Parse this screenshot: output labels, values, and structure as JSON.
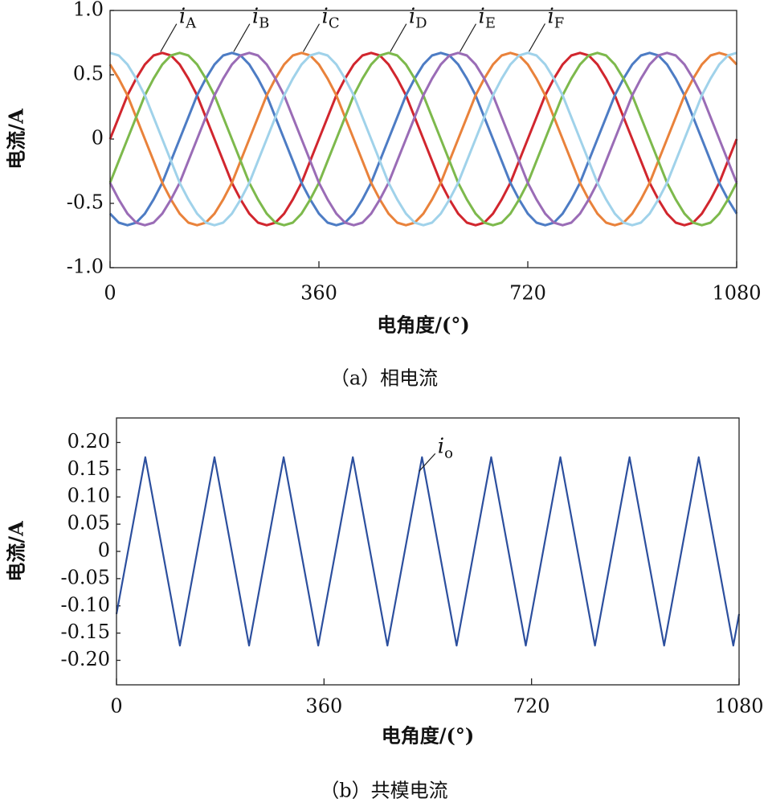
{
  "chart_data": [
    {
      "type": "line",
      "caption": "（a）相电流",
      "xlabel": "电角度/(°)",
      "ylabel": "电流/A",
      "x": [
        0,
        15,
        30,
        45,
        60,
        75,
        90,
        105,
        120,
        135,
        150,
        165,
        180,
        195,
        210,
        225,
        240,
        255,
        270,
        285,
        300,
        315,
        330,
        345,
        360,
        375,
        390,
        405,
        420,
        435,
        450,
        465,
        480,
        495,
        510,
        525,
        540,
        555,
        570,
        585,
        600,
        615,
        630,
        645,
        660,
        675,
        690,
        705,
        720,
        735,
        750,
        765,
        780,
        795,
        810,
        825,
        840,
        855,
        870,
        885,
        900,
        915,
        930,
        945,
        960,
        975,
        990,
        1005,
        1020,
        1035,
        1050,
        1065,
        1080
      ],
      "xlim": [
        0,
        1080
      ],
      "xticks": [
        0,
        360,
        720,
        1080
      ],
      "ylim": [
        -1,
        1
      ],
      "yticks": [
        {
          "value": 1,
          "label": "1.0"
        },
        0.5,
        0,
        -0.5,
        {
          "value": -1,
          "label": "-1.0"
        }
      ],
      "series": [
        {
          "name": "iA",
          "color": "#d1262e",
          "values": [
            0,
            0.17,
            0.34,
            0.47,
            0.58,
            0.65,
            0.67,
            0.65,
            0.58,
            0.47,
            0.34,
            0.17,
            0,
            -0.17,
            -0.34,
            -0.47,
            -0.58,
            -0.65,
            -0.67,
            -0.65,
            -0.58,
            -0.47,
            -0.34,
            -0.17,
            0,
            0.17,
            0.34,
            0.47,
            0.58,
            0.65,
            0.67,
            0.65,
            0.58,
            0.47,
            0.34,
            0.17,
            0,
            -0.17,
            -0.34,
            -0.47,
            -0.58,
            -0.65,
            -0.67,
            -0.65,
            -0.58,
            -0.47,
            -0.34,
            -0.17,
            0,
            0.17,
            0.34,
            0.47,
            0.58,
            0.65,
            0.67,
            0.65,
            0.58,
            0.47,
            0.34,
            0.17,
            0,
            -0.17,
            -0.34,
            -0.47,
            -0.58,
            -0.65,
            -0.67,
            -0.65,
            -0.58,
            -0.47,
            -0.34,
            -0.17,
            0
          ]
        },
        {
          "name": "iB",
          "color": "#4d7cc4",
          "values": [
            -0.58,
            -0.65,
            -0.67,
            -0.65,
            -0.58,
            -0.47,
            -0.34,
            -0.17,
            0,
            0.17,
            0.34,
            0.47,
            0.58,
            0.65,
            0.67,
            0.65,
            0.58,
            0.47,
            0.34,
            0.17,
            0,
            -0.17,
            -0.34,
            -0.47,
            -0.58,
            -0.65,
            -0.67,
            -0.65,
            -0.58,
            -0.47,
            -0.34,
            -0.17,
            0,
            0.17,
            0.34,
            0.47,
            0.58,
            0.65,
            0.67,
            0.65,
            0.58,
            0.47,
            0.34,
            0.17,
            0,
            -0.17,
            -0.34,
            -0.47,
            -0.58,
            -0.65,
            -0.67,
            -0.65,
            -0.58,
            -0.47,
            -0.34,
            -0.17,
            0,
            0.17,
            0.34,
            0.47,
            0.58,
            0.65,
            0.67,
            0.65,
            0.58,
            0.47,
            0.34,
            0.17,
            0,
            -0.17,
            -0.34,
            -0.47,
            -0.58
          ]
        },
        {
          "name": "iC",
          "color": "#e9823b",
          "values": [
            0.58,
            0.47,
            0.34,
            0.17,
            0,
            -0.17,
            -0.34,
            -0.47,
            -0.58,
            -0.65,
            -0.67,
            -0.65,
            -0.58,
            -0.47,
            -0.34,
            -0.17,
            0,
            0.17,
            0.34,
            0.47,
            0.58,
            0.65,
            0.67,
            0.65,
            0.58,
            0.47,
            0.34,
            0.17,
            0,
            -0.17,
            -0.34,
            -0.47,
            -0.58,
            -0.65,
            -0.67,
            -0.65,
            -0.58,
            -0.47,
            -0.34,
            -0.17,
            0,
            0.17,
            0.34,
            0.47,
            0.58,
            0.65,
            0.67,
            0.65,
            0.58,
            0.47,
            0.34,
            0.17,
            0,
            -0.17,
            -0.34,
            -0.47,
            -0.58,
            -0.65,
            -0.67,
            -0.65,
            -0.58,
            -0.47,
            -0.34,
            -0.17,
            0,
            0.17,
            0.34,
            0.47,
            0.58,
            0.65,
            0.67,
            0.65,
            0.58
          ]
        },
        {
          "name": "iD",
          "color": "#7db94c",
          "values": [
            -0.34,
            -0.17,
            0,
            0.17,
            0.34,
            0.47,
            0.58,
            0.65,
            0.67,
            0.65,
            0.58,
            0.47,
            0.34,
            0.17,
            0,
            -0.17,
            -0.34,
            -0.47,
            -0.58,
            -0.65,
            -0.67,
            -0.65,
            -0.58,
            -0.47,
            -0.34,
            -0.17,
            0,
            0.17,
            0.34,
            0.47,
            0.58,
            0.65,
            0.67,
            0.65,
            0.58,
            0.47,
            0.34,
            0.17,
            0,
            -0.17,
            -0.34,
            -0.47,
            -0.58,
            -0.65,
            -0.67,
            -0.65,
            -0.58,
            -0.47,
            -0.34,
            -0.17,
            0,
            0.17,
            0.34,
            0.47,
            0.58,
            0.65,
            0.67,
            0.65,
            0.58,
            0.47,
            0.34,
            0.17,
            0,
            -0.17,
            -0.34,
            -0.47,
            -0.58,
            -0.65,
            -0.67,
            -0.65,
            -0.58,
            -0.47,
            -0.34
          ]
        },
        {
          "name": "iE",
          "color": "#9a6cb6",
          "values": [
            -0.34,
            -0.47,
            -0.58,
            -0.65,
            -0.67,
            -0.65,
            -0.58,
            -0.47,
            -0.34,
            -0.17,
            0,
            0.17,
            0.34,
            0.47,
            0.58,
            0.65,
            0.67,
            0.65,
            0.58,
            0.47,
            0.34,
            0.17,
            0,
            -0.17,
            -0.34,
            -0.47,
            -0.58,
            -0.65,
            -0.67,
            -0.65,
            -0.58,
            -0.47,
            -0.34,
            -0.17,
            0,
            0.17,
            0.34,
            0.47,
            0.58,
            0.65,
            0.67,
            0.65,
            0.58,
            0.47,
            0.34,
            0.17,
            0,
            -0.17,
            -0.34,
            -0.47,
            -0.58,
            -0.65,
            -0.67,
            -0.65,
            -0.58,
            -0.47,
            -0.34,
            -0.17,
            0,
            0.17,
            0.34,
            0.47,
            0.58,
            0.65,
            0.67,
            0.65,
            0.58,
            0.47,
            0.34,
            0.17,
            0,
            -0.17,
            -0.34
          ]
        },
        {
          "name": "iF",
          "color": "#a0d2ea",
          "values": [
            0.67,
            0.65,
            0.58,
            0.47,
            0.34,
            0.17,
            0,
            -0.17,
            -0.34,
            -0.47,
            -0.58,
            -0.65,
            -0.67,
            -0.65,
            -0.58,
            -0.47,
            -0.34,
            -0.17,
            0,
            0.17,
            0.34,
            0.47,
            0.58,
            0.65,
            0.67,
            0.65,
            0.58,
            0.47,
            0.34,
            0.17,
            0,
            -0.17,
            -0.34,
            -0.47,
            -0.58,
            -0.65,
            -0.67,
            -0.65,
            -0.58,
            -0.47,
            -0.34,
            -0.17,
            0,
            0.17,
            0.34,
            0.47,
            0.58,
            0.65,
            0.67,
            0.65,
            0.58,
            0.47,
            0.34,
            0.17,
            0,
            -0.17,
            -0.34,
            -0.47,
            -0.58,
            -0.65,
            -0.67,
            -0.65,
            -0.58,
            -0.47,
            -0.34,
            -0.17,
            0,
            0.17,
            0.34,
            0.47,
            0.58,
            0.65,
            0.67
          ]
        }
      ]
    },
    {
      "type": "line",
      "caption": "（b）共模电流",
      "xlabel": "电角度/(°)",
      "ylabel": "电流/A",
      "x": [
        0,
        50,
        110,
        170,
        230,
        290,
        350,
        410,
        470,
        530,
        590,
        650,
        710,
        770,
        830,
        890,
        950,
        1010,
        1070,
        1080
      ],
      "xlim": [
        0,
        1080
      ],
      "xticks": [
        0,
        360,
        720,
        1080
      ],
      "ylim": [
        -0.245,
        0.245
      ],
      "yticks": [
        {
          "value": 0.2,
          "label": "0.20"
        },
        0.15,
        {
          "value": 0.1,
          "label": "0.10"
        },
        0.05,
        0,
        -0.05,
        {
          "value": -0.1,
          "label": "-0.10"
        },
        -0.15,
        {
          "value": -0.2,
          "label": "-0.20"
        }
      ],
      "series": [
        {
          "name": "io",
          "color": "#2c4f9e",
          "values": [
            -0.115,
            0.173,
            -0.173,
            0.173,
            -0.173,
            0.173,
            -0.173,
            0.173,
            -0.173,
            0.173,
            -0.173,
            0.173,
            -0.173,
            0.173,
            -0.173,
            0.173,
            -0.173,
            0.173,
            -0.173,
            -0.115
          ]
        }
      ]
    }
  ]
}
